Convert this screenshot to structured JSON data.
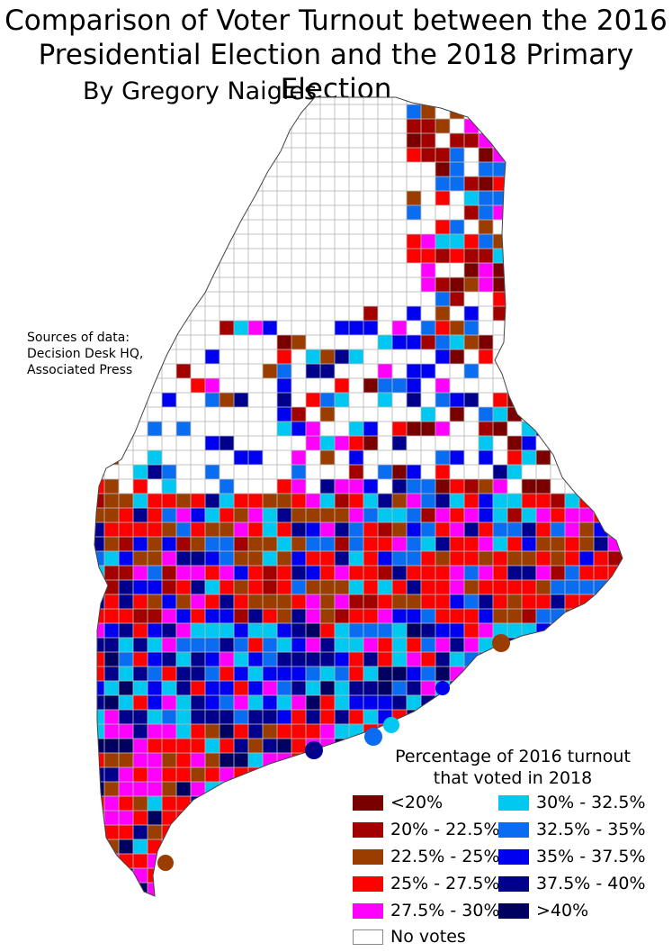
{
  "title_line1": "Comparison of Voter Turnout between the 2016",
  "title_line2": "Presidential Election and the 2018 Primary Election",
  "byline": "By Gregory Naigles",
  "sources": [
    "Sources of data:",
    "Decision Desk HQ,",
    "Associated Press"
  ],
  "legend": {
    "title_line1": "Percentage of 2016 turnout",
    "title_line2": "that voted in 2018",
    "items": [
      {
        "label": "<20%",
        "color": "#7a0000"
      },
      {
        "label": "20% - 22.5%",
        "color": "#a30000"
      },
      {
        "label": "22.5% - 25%",
        "color": "#9c3d00"
      },
      {
        "label": "25% - 27.5%",
        "color": "#ff0000"
      },
      {
        "label": "27.5% - 30%",
        "color": "#ff00ff"
      },
      {
        "label": "30% - 32.5%",
        "color": "#00c8f0"
      },
      {
        "label": "32.5% - 35%",
        "color": "#0a6cf0"
      },
      {
        "label": "35% - 37.5%",
        "color": "#0000f0"
      },
      {
        "label": "37.5% - 40%",
        "color": "#00008c"
      },
      {
        "label": ">40%",
        "color": "#000060"
      },
      {
        "label": "No votes",
        "color": "#ffffff"
      }
    ]
  }
}
